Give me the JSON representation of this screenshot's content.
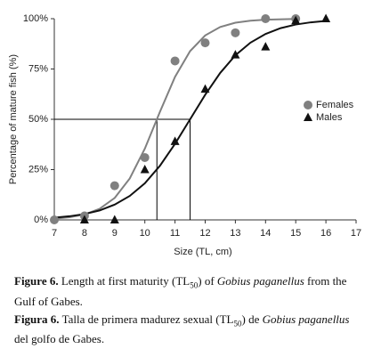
{
  "chart_data": {
    "type": "scatter",
    "xlabel": "Size (TL, cm)",
    "ylabel": "Percentage of mature fish (%)",
    "xlim": [
      7,
      17
    ],
    "xticks": [
      7,
      8,
      9,
      10,
      11,
      12,
      13,
      14,
      15,
      16,
      17
    ],
    "ylim": [
      0,
      100
    ],
    "yticks": [
      {
        "value": 0,
        "label": "0%"
      },
      {
        "value": 25,
        "label": "25%"
      },
      {
        "value": 50,
        "label": "50%"
      },
      {
        "value": 75,
        "label": "75%"
      },
      {
        "value": 100,
        "label": "100%"
      }
    ],
    "legend": "right",
    "series": [
      {
        "name": "Females",
        "color": "#808080",
        "marker": "circle",
        "x": [
          7,
          8,
          9,
          10,
          11,
          12,
          13,
          14,
          15
        ],
        "values": [
          0,
          2,
          17,
          31,
          79,
          88,
          93,
          100,
          100
        ]
      },
      {
        "name": "Males",
        "color": "#111111",
        "marker": "triangle",
        "x": [
          8,
          9,
          10,
          11,
          12,
          13,
          14,
          15,
          16
        ],
        "values": [
          0,
          0,
          25,
          39,
          65,
          82,
          86,
          99,
          100
        ]
      }
    ],
    "fits": [
      {
        "color": "#808080",
        "x": [
          7,
          7.5,
          8,
          8.5,
          9,
          9.5,
          10,
          10.5,
          11,
          11.5,
          12,
          12.5,
          13,
          13.5,
          14,
          15
        ],
        "values": [
          0.6,
          1.3,
          2.7,
          5.5,
          10.9,
          20.6,
          35.4,
          53.7,
          71.1,
          83.9,
          91.7,
          95.9,
          98.0,
          99.0,
          99.5,
          99.9
        ]
      },
      {
        "color": "#111111",
        "x": [
          7,
          7.5,
          8,
          8.5,
          9,
          9.5,
          10,
          10.5,
          11,
          11.5,
          12,
          12.5,
          13,
          13.5,
          14,
          14.5,
          15,
          15.5,
          16
        ],
        "values": [
          1.1,
          1.8,
          2.9,
          4.7,
          7.6,
          11.9,
          18.2,
          26.9,
          37.8,
          50,
          62.2,
          73.1,
          81.8,
          88.1,
          92.4,
          95.3,
          97.1,
          98.2,
          98.9
        ]
      }
    ],
    "reference": {
      "y": 50,
      "x": [
        10.4,
        11.5
      ]
    }
  },
  "caption": {
    "en": {
      "label": "Figure 6.",
      "text1": "Length at first maturity (TL",
      "sub": "50",
      "text2": ") of",
      "species": "Gobius paganellus",
      "text3": "from the Gulf of Gabes."
    },
    "es": {
      "label": "Figura 6.",
      "text1": "Talla de primera madurez sexual (TL",
      "sub": "50",
      "text2": ") de",
      "species": "Gobius paganellus",
      "text3": "del golfo de Gabes."
    }
  }
}
